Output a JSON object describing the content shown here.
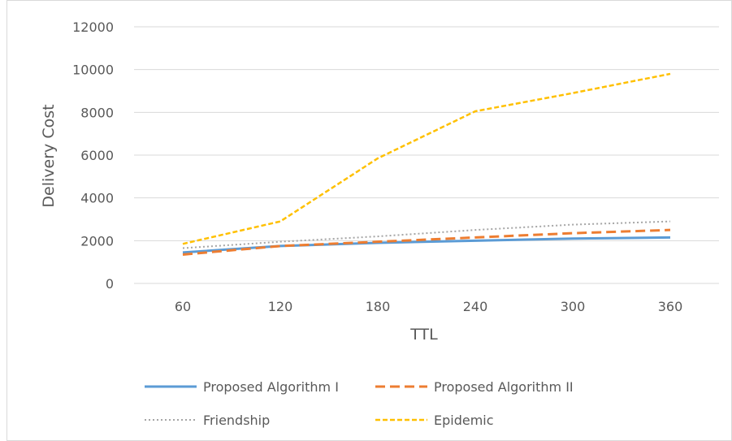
{
  "chart_data": {
    "type": "line",
    "title": "",
    "xlabel": "TTL",
    "ylabel": "Delivery Cost",
    "categories": [
      "60",
      "120",
      "180",
      "240",
      "300",
      "360"
    ],
    "ylim": [
      0,
      12000
    ],
    "yticks": [
      0,
      2000,
      4000,
      6000,
      8000,
      10000,
      12000
    ],
    "grid": true,
    "legend_position": "bottom",
    "series": [
      {
        "name": "Proposed Algorithm I",
        "values": [
          1450,
          1750,
          1900,
          2000,
          2100,
          2150
        ],
        "color": "#5b9bd5",
        "dash": "solid"
      },
      {
        "name": "Proposed Algorithm II",
        "values": [
          1350,
          1750,
          1950,
          2150,
          2350,
          2500
        ],
        "color": "#ed7d31",
        "dash": "dashed"
      },
      {
        "name": "Friendship",
        "values": [
          1650,
          1950,
          2200,
          2500,
          2750,
          2900
        ],
        "color": "#a5a5a5",
        "dash": "dotted"
      },
      {
        "name": "Epidemic",
        "values": [
          1850,
          2900,
          5850,
          8050,
          8900,
          9800
        ],
        "color": "#ffc000",
        "dash": "dash-short"
      }
    ]
  }
}
